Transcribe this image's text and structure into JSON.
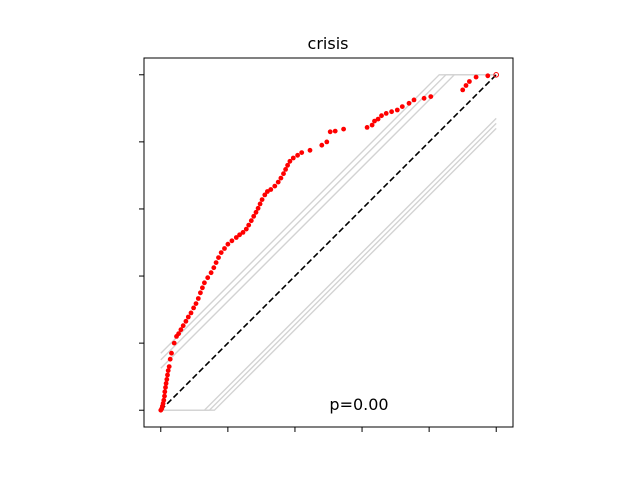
{
  "chart_data": {
    "type": "scatter",
    "title": "crisis",
    "annotation": "p=0.00",
    "xlabel": "",
    "ylabel": "",
    "xlim": [
      -0.05,
      1.05
    ],
    "ylim": [
      -0.05,
      1.05
    ],
    "xticks": [
      0,
      0.2,
      0.4,
      0.6,
      0.8,
      1.0
    ],
    "yticks": [
      0,
      0.2,
      0.4,
      0.6,
      0.8,
      1.0
    ],
    "tick_labels_visible": false,
    "grid": false,
    "reference_line": {
      "from": [
        0,
        0
      ],
      "to": [
        1,
        1
      ],
      "style": "dashed",
      "color": "#000000"
    },
    "envelope_color": "#d3d3d3",
    "envelope_bands": [
      {
        "offset": 0.17
      },
      {
        "offset": 0.15
      },
      {
        "offset": 0.125
      },
      {
        "offset": -0.13
      },
      {
        "offset": -0.145
      },
      {
        "offset": -0.16
      }
    ],
    "series": [
      {
        "marker_color": "#ff0000",
        "points": [
          [
            0.0,
            0.0
          ],
          [
            0.003,
            0.005
          ],
          [
            0.005,
            0.012
          ],
          [
            0.007,
            0.02
          ],
          [
            0.009,
            0.03
          ],
          [
            0.011,
            0.042
          ],
          [
            0.012,
            0.055
          ],
          [
            0.014,
            0.068
          ],
          [
            0.016,
            0.08
          ],
          [
            0.018,
            0.092
          ],
          [
            0.02,
            0.105
          ],
          [
            0.022,
            0.118
          ],
          [
            0.025,
            0.13
          ],
          [
            0.028,
            0.152
          ],
          [
            0.032,
            0.17
          ],
          [
            0.04,
            0.2
          ],
          [
            0.047,
            0.22
          ],
          [
            0.053,
            0.228
          ],
          [
            0.06,
            0.24
          ],
          [
            0.067,
            0.252
          ],
          [
            0.075,
            0.265
          ],
          [
            0.082,
            0.278
          ],
          [
            0.09,
            0.29
          ],
          [
            0.098,
            0.305
          ],
          [
            0.105,
            0.318
          ],
          [
            0.112,
            0.333
          ],
          [
            0.118,
            0.35
          ],
          [
            0.124,
            0.365
          ],
          [
            0.13,
            0.38
          ],
          [
            0.14,
            0.395
          ],
          [
            0.15,
            0.41
          ],
          [
            0.158,
            0.425
          ],
          [
            0.165,
            0.44
          ],
          [
            0.172,
            0.455
          ],
          [
            0.18,
            0.47
          ],
          [
            0.19,
            0.482
          ],
          [
            0.2,
            0.495
          ],
          [
            0.212,
            0.505
          ],
          [
            0.225,
            0.515
          ],
          [
            0.235,
            0.523
          ],
          [
            0.245,
            0.53
          ],
          [
            0.255,
            0.54
          ],
          [
            0.262,
            0.552
          ],
          [
            0.27,
            0.565
          ],
          [
            0.277,
            0.578
          ],
          [
            0.284,
            0.59
          ],
          [
            0.29,
            0.602
          ],
          [
            0.296,
            0.615
          ],
          [
            0.302,
            0.628
          ],
          [
            0.31,
            0.642
          ],
          [
            0.318,
            0.652
          ],
          [
            0.328,
            0.658
          ],
          [
            0.34,
            0.668
          ],
          [
            0.35,
            0.68
          ],
          [
            0.358,
            0.692
          ],
          [
            0.366,
            0.705
          ],
          [
            0.372,
            0.718
          ],
          [
            0.378,
            0.73
          ],
          [
            0.385,
            0.742
          ],
          [
            0.395,
            0.752
          ],
          [
            0.408,
            0.76
          ],
          [
            0.42,
            0.768
          ],
          [
            0.445,
            0.775
          ],
          [
            0.48,
            0.79
          ],
          [
            0.495,
            0.8
          ],
          [
            0.505,
            0.83
          ],
          [
            0.52,
            0.832
          ],
          [
            0.545,
            0.838
          ],
          [
            0.615,
            0.843
          ],
          [
            0.63,
            0.85
          ],
          [
            0.637,
            0.862
          ],
          [
            0.648,
            0.868
          ],
          [
            0.658,
            0.878
          ],
          [
            0.672,
            0.885
          ],
          [
            0.688,
            0.89
          ],
          [
            0.705,
            0.895
          ],
          [
            0.72,
            0.905
          ],
          [
            0.74,
            0.915
          ],
          [
            0.755,
            0.925
          ],
          [
            0.785,
            0.93
          ],
          [
            0.805,
            0.935
          ],
          [
            0.9,
            0.955
          ],
          [
            0.91,
            0.968
          ],
          [
            0.92,
            0.98
          ],
          [
            0.94,
            0.993
          ],
          [
            0.975,
            0.997
          ],
          [
            1.0,
            1.0
          ]
        ]
      }
    ]
  }
}
